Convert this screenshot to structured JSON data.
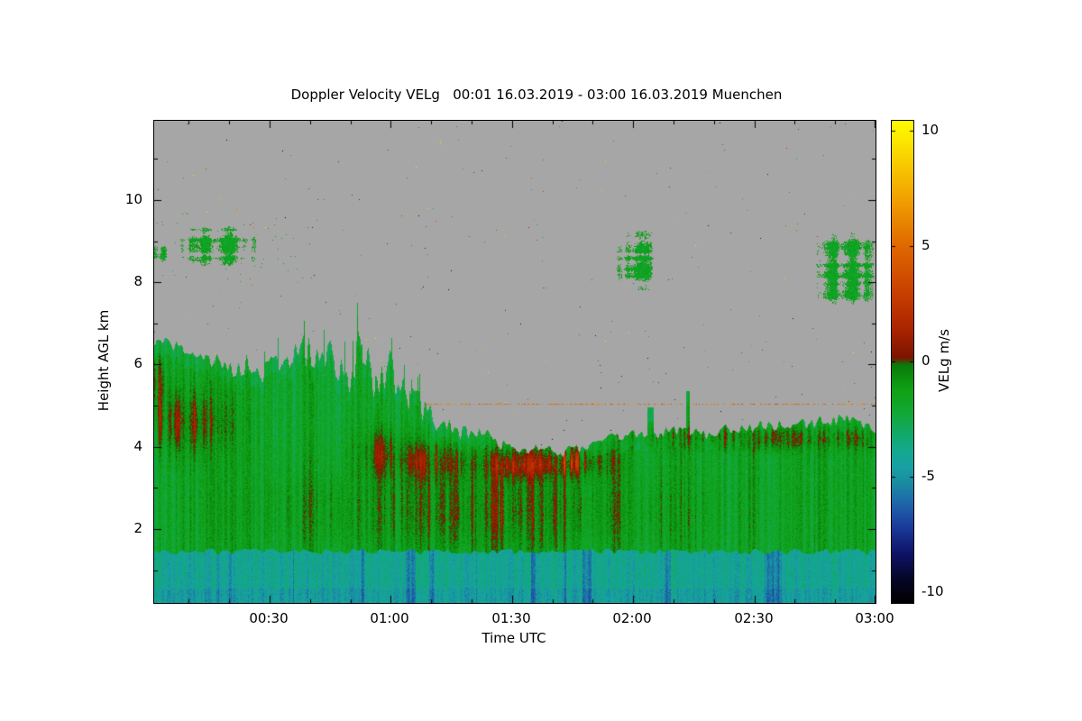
{
  "chart_data": {
    "type": "heatmap",
    "title": "Doppler Velocity VELg   00:01 16.03.2019 - 03:00 16.03.2019 Muenchen",
    "variable": "Doppler Velocity VELg",
    "time_start": "00:01 16.03.2019",
    "time_end": "03:00 16.03.2019",
    "station": "Muenchen",
    "xlabel": "Time UTC",
    "ylabel": "Height AGL km",
    "colorbar_label": "VELg m/s",
    "xlim_minutes": [
      1.45,
      180
    ],
    "ylim_km": [
      0.2,
      11.93
    ],
    "xticks": [
      {
        "minute": 30,
        "label": "00:30"
      },
      {
        "minute": 60,
        "label": "01:00"
      },
      {
        "minute": 90,
        "label": "01:30"
      },
      {
        "minute": 120,
        "label": "02:00"
      },
      {
        "minute": 150,
        "label": "02:30"
      },
      {
        "minute": 180,
        "label": "03:00"
      }
    ],
    "yticks": [
      {
        "km": 2,
        "label": "2"
      },
      {
        "km": 4,
        "label": "4"
      },
      {
        "km": 6,
        "label": "6"
      },
      {
        "km": 8,
        "label": "8"
      },
      {
        "km": 10,
        "label": "10"
      }
    ],
    "background_nodata_color": "#a6a6a6",
    "colorbar": {
      "vmin": -10.47,
      "vmax": 10.43,
      "ticks": [
        {
          "value": 10,
          "label": "10"
        },
        {
          "value": 5,
          "label": "5"
        },
        {
          "value": 0,
          "label": "0"
        },
        {
          "value": -5,
          "label": "-5"
        },
        {
          "value": -10,
          "label": "-10"
        }
      ],
      "stops": [
        [
          -10.5,
          "#000000"
        ],
        [
          -9.4,
          "#06062a"
        ],
        [
          -8.3,
          "#0e1468"
        ],
        [
          -7.2,
          "#1a3a9a"
        ],
        [
          -6.2,
          "#1e64aa"
        ],
        [
          -5.3,
          "#1a8aa0"
        ],
        [
          -4.6,
          "#18a0a4"
        ],
        [
          -3.9,
          "#14a890"
        ],
        [
          -3.0,
          "#12a862"
        ],
        [
          -2.2,
          "#12a833"
        ],
        [
          -1.2,
          "#0fa014"
        ],
        [
          -0.15,
          "#0a7a0a"
        ],
        [
          0.15,
          "#7a1400"
        ],
        [
          1.3,
          "#a82200"
        ],
        [
          3,
          "#c84000"
        ],
        [
          5,
          "#e06800"
        ],
        [
          7,
          "#f0a000"
        ],
        [
          8.6,
          "#f8cc00"
        ],
        [
          10.5,
          "#ffff00"
        ]
      ]
    },
    "boundary_layer_top_km": [
      [
        1.4,
        6.6
      ],
      [
        8,
        6.35
      ],
      [
        15,
        6.1
      ],
      [
        22,
        5.95
      ],
      [
        28,
        5.85
      ],
      [
        33,
        6.1
      ],
      [
        40,
        6.3
      ],
      [
        45,
        6.25
      ],
      [
        50,
        6.1
      ],
      [
        56,
        5.9
      ],
      [
        62,
        5.5
      ],
      [
        66,
        5.1
      ],
      [
        71,
        4.65
      ],
      [
        76,
        4.45
      ],
      [
        84,
        4.25
      ],
      [
        93,
        3.95
      ],
      [
        102,
        3.85
      ],
      [
        108,
        3.95
      ],
      [
        114,
        4.25
      ],
      [
        120,
        4.35
      ],
      [
        135,
        4.35
      ],
      [
        145,
        4.4
      ],
      [
        152,
        4.5
      ],
      [
        160,
        4.55
      ],
      [
        168,
        4.65
      ],
      [
        174,
        4.6
      ],
      [
        180,
        4.4
      ]
    ],
    "spikes": [
      {
        "t": 124.3,
        "top": 4.95,
        "w": 0.8
      },
      {
        "t": 133.6,
        "top": 5.35,
        "w": 0.5
      }
    ],
    "surface_band": {
      "top_km": 1.45,
      "velocity": -4.1
    },
    "bl_mean_velocity": -1.7,
    "red_features": [
      {
        "h": 3.65,
        "hw": 0.35,
        "tc": 103,
        "tw": 10,
        "amp": 4.6,
        "seed": 51
      },
      {
        "h": 3.6,
        "hw": 0.4,
        "tc": 89,
        "tw": 7,
        "amp": 3.0,
        "seed": 52
      },
      {
        "h": 3.65,
        "hw": 0.45,
        "tc": 71,
        "tw": 8,
        "amp": 2.6,
        "seed": 53
      },
      {
        "h": 3.85,
        "hw": 0.55,
        "tc": 58,
        "tw": 6,
        "amp": 2.2,
        "seed": 54
      },
      {
        "h": 4.6,
        "hw": 0.75,
        "tc": 8,
        "tw": 11,
        "amp": 2.6,
        "seed": 55
      },
      {
        "h": 5.6,
        "hw": 0.7,
        "tc": 2,
        "tw": 3,
        "amp": 2.0,
        "seed": 58
      },
      {
        "h": 4.25,
        "hw": 0.3,
        "tc": 150,
        "tw": 32,
        "amp": 2.6,
        "seed": 56
      },
      {
        "h": 2.5,
        "hw": 1.1,
        "tc": 85,
        "tw": 48,
        "amp": 1.9,
        "seed": 57
      }
    ],
    "clouds": [
      {
        "t0": 6.5,
        "t1": 29,
        "h0": 8.35,
        "h1": 9.4,
        "seed": 61,
        "th": 0.66
      },
      {
        "t0": 0.5,
        "t1": 5,
        "h0": 8.45,
        "h1": 8.95,
        "seed": 64,
        "th": 0.75
      },
      {
        "t0": 115.5,
        "t1": 126,
        "h0": 7.7,
        "h1": 9.4,
        "seed": 71,
        "th": 0.62
      },
      {
        "t0": 165,
        "t1": 180.6,
        "h0": 7.3,
        "h1": 9.25,
        "seed": 81,
        "th": 0.56
      }
    ],
    "artifact_line": {
      "height_km": 5.05,
      "t0": 52
    },
    "speckle_density": 0.001
  }
}
